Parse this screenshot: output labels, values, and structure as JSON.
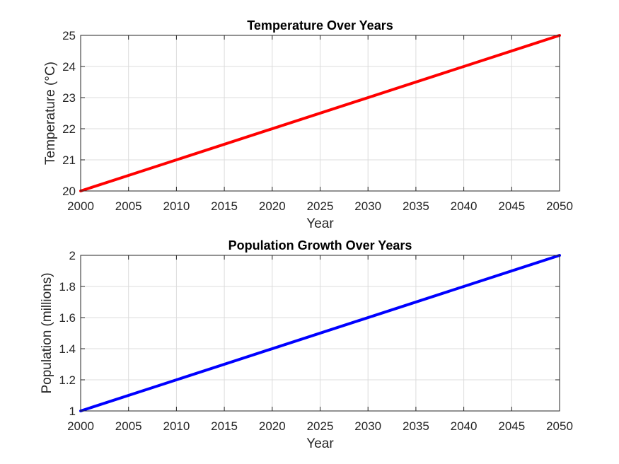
{
  "chart_data": [
    {
      "type": "line",
      "title": "Temperature Over Years",
      "xlabel": "Year",
      "ylabel": "Temperature (°C)",
      "xlim": [
        2000,
        2050
      ],
      "ylim": [
        20,
        25
      ],
      "xticks": [
        "2000",
        "2005",
        "2010",
        "2015",
        "2020",
        "2025",
        "2030",
        "2035",
        "2040",
        "2045",
        "2050"
      ],
      "yticks": [
        "20",
        "21",
        "22",
        "23",
        "24",
        "25"
      ],
      "grid": true,
      "series": [
        {
          "color": "#ff0000",
          "x": [
            2000,
            2050
          ],
          "y": [
            20,
            25
          ]
        }
      ]
    },
    {
      "type": "line",
      "title": "Population Growth Over Years",
      "xlabel": "Year",
      "ylabel": "Population (millions)",
      "xlim": [
        2000,
        2050
      ],
      "ylim": [
        1,
        2
      ],
      "xticks": [
        "2000",
        "2005",
        "2010",
        "2015",
        "2020",
        "2025",
        "2030",
        "2035",
        "2040",
        "2045",
        "2050"
      ],
      "yticks": [
        "1",
        "1.2",
        "1.4",
        "1.6",
        "1.8",
        "2"
      ],
      "grid": true,
      "series": [
        {
          "color": "#0000ff",
          "x": [
            2000,
            2050
          ],
          "y": [
            1,
            2
          ]
        }
      ]
    }
  ]
}
